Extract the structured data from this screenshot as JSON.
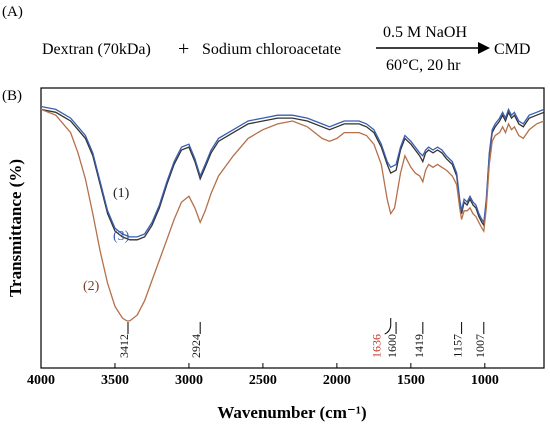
{
  "panel_a": {
    "label": "(A)",
    "reactant1": "Dextran (70kDa)",
    "plus": "+",
    "reactant2": "Sodium chloroacetate",
    "above_arrow": "0.5 M NaOH",
    "below_arrow": "60°C, 20 hr",
    "product": "CMD"
  },
  "chart_data": {
    "type": "line",
    "panel_label": "(B)",
    "xlabel": "Wavenumber (cm⁻¹)",
    "ylabel": "Transmittance (%)",
    "xlim": [
      4000,
      600
    ],
    "x_reversed": true,
    "x_ticks": [
      4000,
      3500,
      3000,
      2500,
      2000,
      1500,
      1000
    ],
    "y_ticks_shown": false,
    "grid": false,
    "legend": "none",
    "series_labels": [
      {
        "text": "(1)",
        "color": "#222222"
      },
      {
        "text": "(3)",
        "color": "#3a5fb0"
      },
      {
        "text": "(2)",
        "color": "#7a3f22"
      }
    ],
    "peak_annotations": [
      {
        "wavenumber": 3412,
        "label": "3412",
        "color": "#111111",
        "highlight": false
      },
      {
        "wavenumber": 2924,
        "label": "2924",
        "color": "#111111",
        "highlight": false
      },
      {
        "wavenumber": 1636,
        "label": "1636",
        "color": "#c0392b",
        "highlight": true
      },
      {
        "wavenumber": 1600,
        "label": "1600",
        "color": "#111111",
        "highlight": false
      },
      {
        "wavenumber": 1419,
        "label": "1419",
        "color": "#111111",
        "highlight": false
      },
      {
        "wavenumber": 1157,
        "label": "1157",
        "color": "#111111",
        "highlight": false
      },
      {
        "wavenumber": 1007,
        "label": "1007",
        "color": "#111111",
        "highlight": false
      }
    ],
    "series": [
      {
        "id": "1",
        "color": "#333333",
        "points": [
          [
            4000,
            94
          ],
          [
            3900,
            93
          ],
          [
            3800,
            90
          ],
          [
            3700,
            84
          ],
          [
            3650,
            78
          ],
          [
            3600,
            68
          ],
          [
            3550,
            58
          ],
          [
            3500,
            52
          ],
          [
            3450,
            50
          ],
          [
            3400,
            49
          ],
          [
            3350,
            49
          ],
          [
            3300,
            50
          ],
          [
            3250,
            54
          ],
          [
            3200,
            60
          ],
          [
            3150,
            68
          ],
          [
            3100,
            75
          ],
          [
            3050,
            80
          ],
          [
            3000,
            81
          ],
          [
            2960,
            76
          ],
          [
            2924,
            70
          ],
          [
            2890,
            74
          ],
          [
            2850,
            79
          ],
          [
            2800,
            83
          ],
          [
            2700,
            86
          ],
          [
            2600,
            89
          ],
          [
            2500,
            90
          ],
          [
            2400,
            91
          ],
          [
            2300,
            91
          ],
          [
            2200,
            90
          ],
          [
            2100,
            88
          ],
          [
            2050,
            87
          ],
          [
            2000,
            88
          ],
          [
            1950,
            89
          ],
          [
            1900,
            89
          ],
          [
            1850,
            89
          ],
          [
            1800,
            88
          ],
          [
            1750,
            86
          ],
          [
            1700,
            81
          ],
          [
            1660,
            75
          ],
          [
            1636,
            72
          ],
          [
            1600,
            73
          ],
          [
            1570,
            80
          ],
          [
            1540,
            84
          ],
          [
            1500,
            82
          ],
          [
            1470,
            80
          ],
          [
            1440,
            78
          ],
          [
            1419,
            76
          ],
          [
            1400,
            79
          ],
          [
            1380,
            80
          ],
          [
            1350,
            79
          ],
          [
            1320,
            80
          ],
          [
            1290,
            79
          ],
          [
            1260,
            77
          ],
          [
            1220,
            75
          ],
          [
            1190,
            71
          ],
          [
            1170,
            62
          ],
          [
            1157,
            58
          ],
          [
            1140,
            62
          ],
          [
            1120,
            61
          ],
          [
            1100,
            63
          ],
          [
            1080,
            61
          ],
          [
            1060,
            60
          ],
          [
            1040,
            57
          ],
          [
            1020,
            55
          ],
          [
            1007,
            54
          ],
          [
            990,
            62
          ],
          [
            970,
            78
          ],
          [
            950,
            86
          ],
          [
            930,
            88
          ],
          [
            900,
            90
          ],
          [
            880,
            92
          ],
          [
            860,
            90
          ],
          [
            840,
            93
          ],
          [
            820,
            91
          ],
          [
            800,
            92
          ],
          [
            770,
            89
          ],
          [
            740,
            88
          ],
          [
            700,
            91
          ],
          [
            650,
            92
          ],
          [
            600,
            93
          ]
        ]
      },
      {
        "id": "3",
        "color": "#3a5fb0",
        "points": [
          [
            4000,
            95
          ],
          [
            3900,
            94
          ],
          [
            3800,
            91
          ],
          [
            3700,
            85
          ],
          [
            3650,
            79
          ],
          [
            3600,
            69
          ],
          [
            3550,
            59
          ],
          [
            3500,
            53
          ],
          [
            3450,
            51
          ],
          [
            3400,
            50
          ],
          [
            3350,
            50
          ],
          [
            3300,
            51
          ],
          [
            3250,
            55
          ],
          [
            3200,
            61
          ],
          [
            3150,
            69
          ],
          [
            3100,
            76
          ],
          [
            3050,
            81
          ],
          [
            3000,
            82
          ],
          [
            2960,
            77
          ],
          [
            2924,
            71
          ],
          [
            2890,
            75
          ],
          [
            2850,
            80
          ],
          [
            2800,
            84
          ],
          [
            2700,
            87
          ],
          [
            2600,
            90
          ],
          [
            2500,
            91
          ],
          [
            2400,
            92
          ],
          [
            2300,
            92
          ],
          [
            2200,
            91
          ],
          [
            2100,
            89
          ],
          [
            2050,
            88
          ],
          [
            2000,
            89
          ],
          [
            1950,
            90
          ],
          [
            1900,
            90
          ],
          [
            1850,
            90
          ],
          [
            1800,
            89
          ],
          [
            1750,
            87
          ],
          [
            1700,
            82
          ],
          [
            1660,
            76
          ],
          [
            1636,
            74
          ],
          [
            1600,
            75
          ],
          [
            1570,
            81
          ],
          [
            1540,
            85
          ],
          [
            1500,
            83
          ],
          [
            1470,
            81
          ],
          [
            1440,
            79
          ],
          [
            1419,
            78
          ],
          [
            1400,
            80
          ],
          [
            1380,
            81
          ],
          [
            1350,
            80
          ],
          [
            1320,
            81
          ],
          [
            1290,
            80
          ],
          [
            1260,
            78
          ],
          [
            1220,
            76
          ],
          [
            1190,
            72
          ],
          [
            1170,
            63
          ],
          [
            1157,
            59
          ],
          [
            1140,
            63
          ],
          [
            1120,
            62
          ],
          [
            1100,
            64
          ],
          [
            1080,
            62
          ],
          [
            1060,
            61
          ],
          [
            1040,
            58
          ],
          [
            1020,
            56
          ],
          [
            1007,
            55
          ],
          [
            990,
            63
          ],
          [
            970,
            79
          ],
          [
            950,
            87
          ],
          [
            930,
            89
          ],
          [
            900,
            91
          ],
          [
            880,
            93
          ],
          [
            860,
            91
          ],
          [
            840,
            94
          ],
          [
            820,
            92
          ],
          [
            800,
            93
          ],
          [
            770,
            90
          ],
          [
            740,
            89
          ],
          [
            700,
            92
          ],
          [
            650,
            93
          ],
          [
            600,
            94
          ]
        ]
      },
      {
        "id": "2",
        "color": "#b5704a",
        "points": [
          [
            4000,
            94
          ],
          [
            3900,
            92
          ],
          [
            3800,
            86
          ],
          [
            3750,
            79
          ],
          [
            3700,
            70
          ],
          [
            3650,
            58
          ],
          [
            3600,
            45
          ],
          [
            3550,
            34
          ],
          [
            3500,
            26
          ],
          [
            3450,
            22
          ],
          [
            3420,
            21
          ],
          [
            3400,
            21
          ],
          [
            3350,
            23
          ],
          [
            3300,
            28
          ],
          [
            3250,
            35
          ],
          [
            3200,
            42
          ],
          [
            3150,
            49
          ],
          [
            3100,
            56
          ],
          [
            3050,
            62
          ],
          [
            3000,
            64
          ],
          [
            2960,
            60
          ],
          [
            2924,
            55
          ],
          [
            2890,
            59
          ],
          [
            2850,
            65
          ],
          [
            2800,
            71
          ],
          [
            2700,
            78
          ],
          [
            2600,
            84
          ],
          [
            2500,
            87
          ],
          [
            2400,
            89
          ],
          [
            2300,
            90
          ],
          [
            2200,
            88
          ],
          [
            2100,
            84
          ],
          [
            2050,
            83
          ],
          [
            2000,
            84
          ],
          [
            1950,
            86
          ],
          [
            1900,
            86
          ],
          [
            1850,
            86
          ],
          [
            1800,
            85
          ],
          [
            1750,
            82
          ],
          [
            1700,
            75
          ],
          [
            1660,
            63
          ],
          [
            1636,
            58
          ],
          [
            1610,
            60
          ],
          [
            1570,
            72
          ],
          [
            1540,
            78
          ],
          [
            1500,
            74
          ],
          [
            1470,
            72
          ],
          [
            1440,
            71
          ],
          [
            1419,
            69
          ],
          [
            1400,
            73
          ],
          [
            1380,
            75
          ],
          [
            1350,
            74
          ],
          [
            1320,
            75
          ],
          [
            1290,
            74
          ],
          [
            1260,
            73
          ],
          [
            1220,
            71
          ],
          [
            1190,
            68
          ],
          [
            1170,
            60
          ],
          [
            1157,
            56
          ],
          [
            1140,
            59
          ],
          [
            1120,
            59
          ],
          [
            1100,
            60
          ],
          [
            1080,
            58
          ],
          [
            1060,
            57
          ],
          [
            1040,
            55
          ],
          [
            1020,
            53
          ],
          [
            1007,
            52
          ],
          [
            990,
            60
          ],
          [
            970,
            75
          ],
          [
            950,
            83
          ],
          [
            930,
            85
          ],
          [
            900,
            86
          ],
          [
            880,
            88
          ],
          [
            860,
            86
          ],
          [
            840,
            89
          ],
          [
            820,
            87
          ],
          [
            800,
            88
          ],
          [
            770,
            85
          ],
          [
            740,
            84
          ],
          [
            700,
            87
          ],
          [
            650,
            89
          ],
          [
            600,
            90
          ]
        ]
      }
    ]
  }
}
